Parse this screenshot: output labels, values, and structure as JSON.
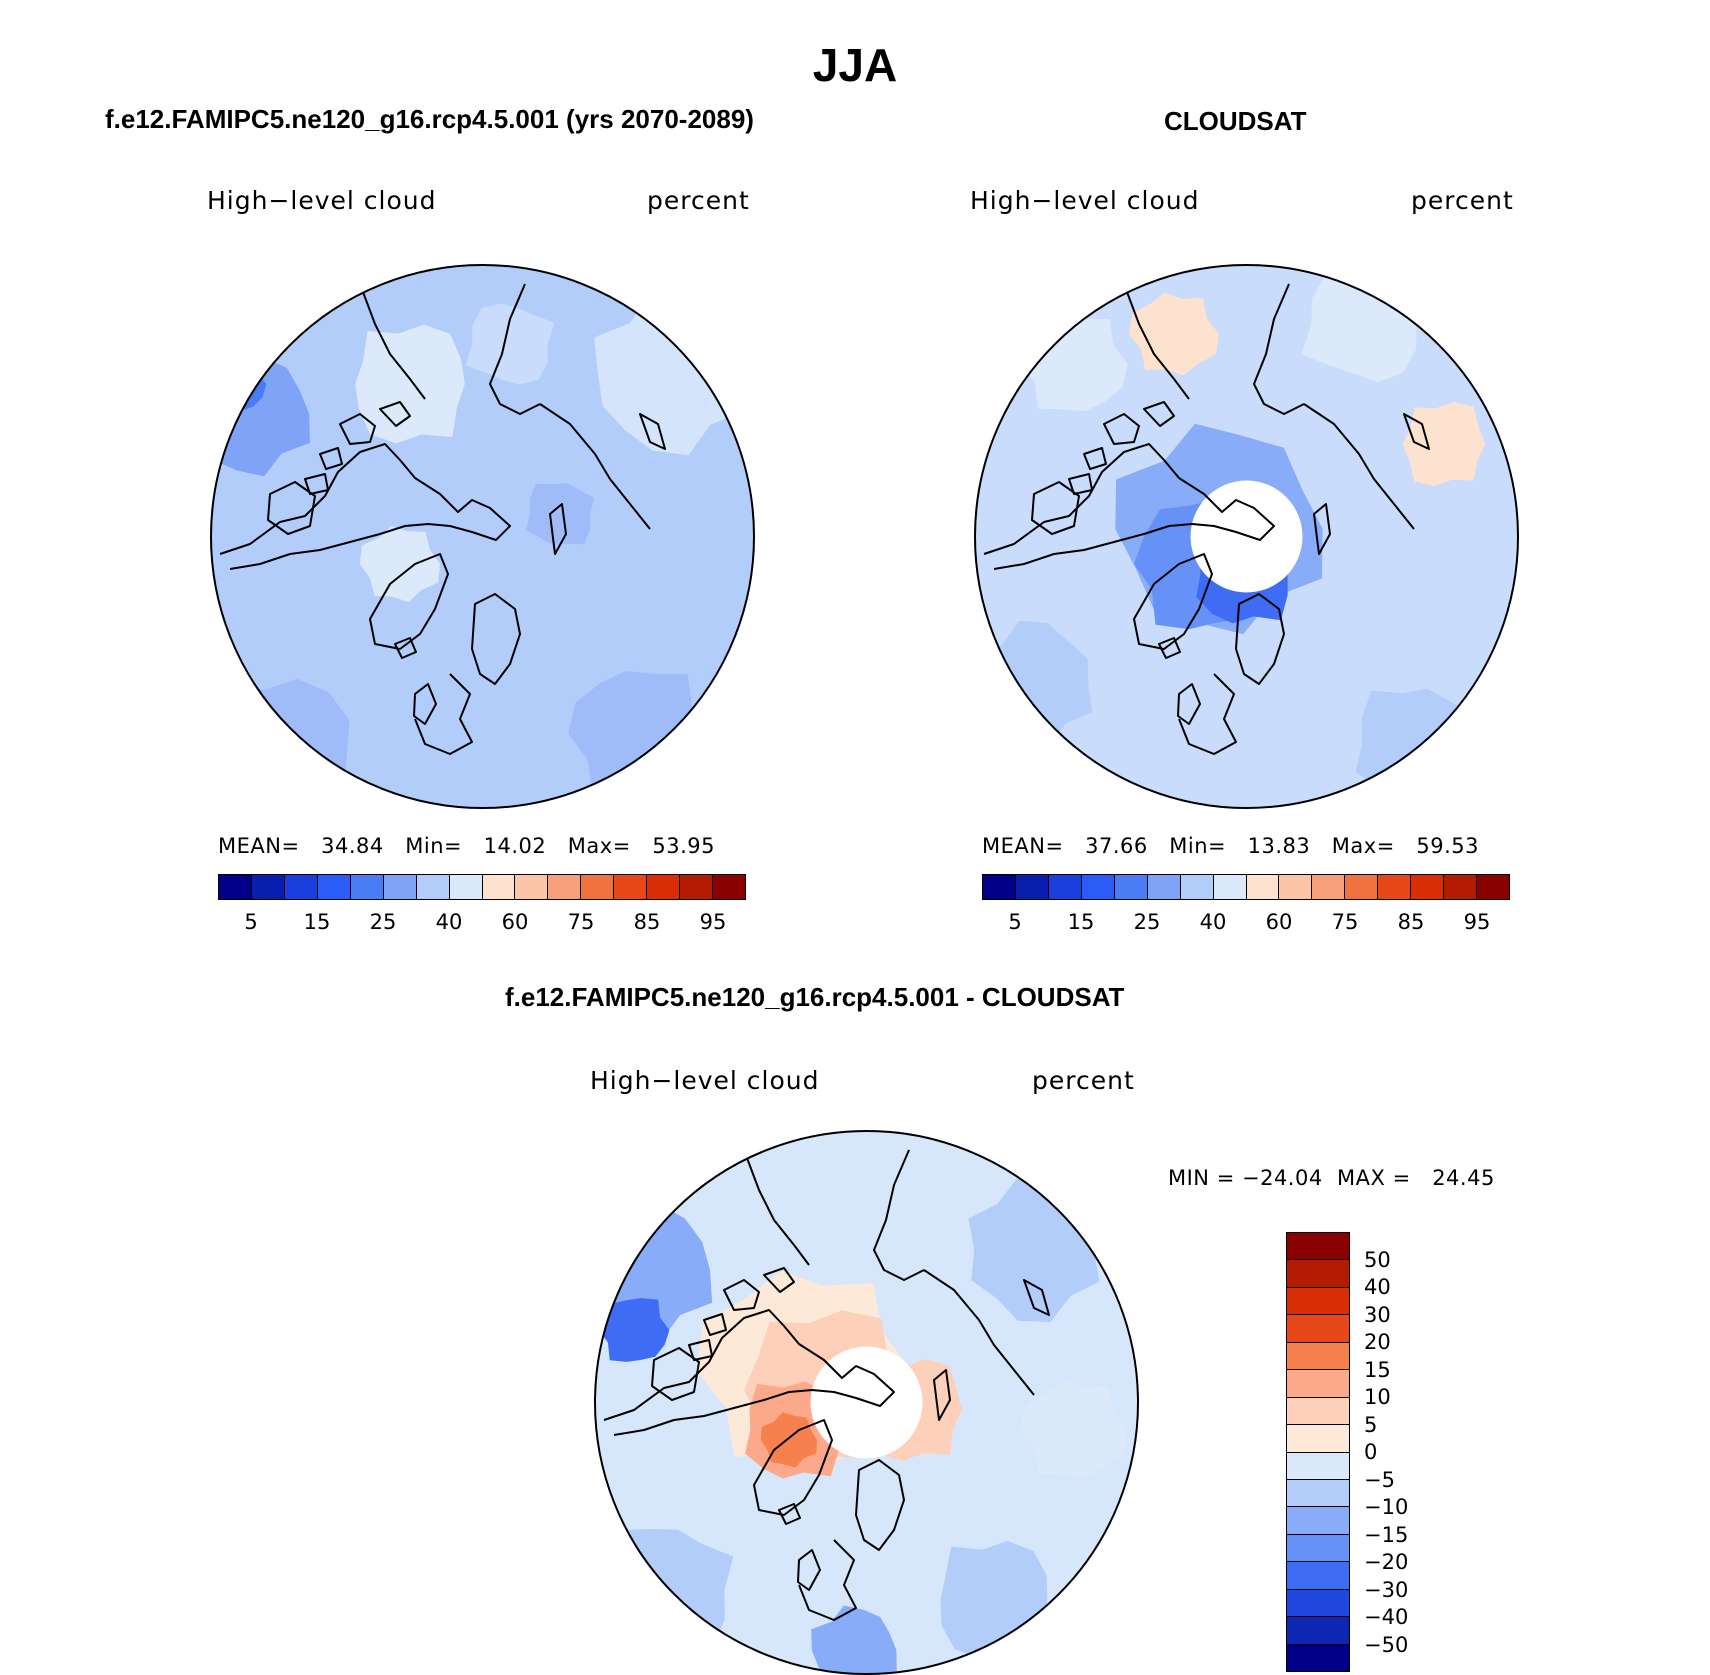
{
  "title": "JJA",
  "panels": [
    {
      "title": "f.e12.FAMIPC5.ne120_g16.rcp4.5.001 (yrs 2070-2089)",
      "left_label": "High−level cloud",
      "right_label": "percent",
      "stats": {
        "mean_label": "MEAN=",
        "mean": "34.84",
        "min_label": "Min=",
        "min": "14.02",
        "max_label": "Max=",
        "max": "53.95"
      },
      "base_color": "#b3cdfb",
      "has_hole": false
    },
    {
      "title": "CLOUDSAT",
      "left_label": "High−level cloud",
      "right_label": "percent",
      "stats": {
        "mean_label": "MEAN=",
        "mean": "37.66",
        "min_label": "Min=",
        "min": "13.83",
        "max_label": "Max=",
        "max": "59.53"
      },
      "base_color": "#c9dcfb",
      "has_hole": true
    },
    {
      "title": "f.e12.FAMIPC5.ne120_g16.rcp4.5.001 - CLOUDSAT",
      "left_label": "High−level cloud",
      "right_label": "percent",
      "minmax": "MIN = −24.04  MAX =   24.45",
      "base_color": "#d6e6fb",
      "has_hole": true
    }
  ],
  "abs_colorbar": {
    "colors": [
      "#00008b",
      "#0a1fb0",
      "#1a3fdc",
      "#2b5cf5",
      "#4a7cf6",
      "#7fa3f7",
      "#b3cdfb",
      "#dbe9fb",
      "#fde3cf",
      "#fbc5a7",
      "#f7a07a",
      "#f2723f",
      "#e8471a",
      "#d92e06",
      "#b31c03",
      "#8b0000"
    ],
    "labels": [
      "5",
      "15",
      "25",
      "40",
      "60",
      "75",
      "85",
      "95"
    ]
  },
  "diff_colorbar": {
    "colors": [
      "#8b0000",
      "#b31c03",
      "#d92e06",
      "#e8471a",
      "#f7804f",
      "#fba98a",
      "#fdd0ba",
      "#fde9d8",
      "#dbe9fb",
      "#b3cdfb",
      "#88acf7",
      "#6691f6",
      "#3f6cf4",
      "#1f47e0",
      "#0d27b3",
      "#00008b"
    ],
    "labels": [
      "50",
      "40",
      "30",
      "20",
      "15",
      "10",
      "5",
      "0",
      "−5",
      "−10",
      "−15",
      "−20",
      "−30",
      "−40",
      "−50"
    ]
  }
}
